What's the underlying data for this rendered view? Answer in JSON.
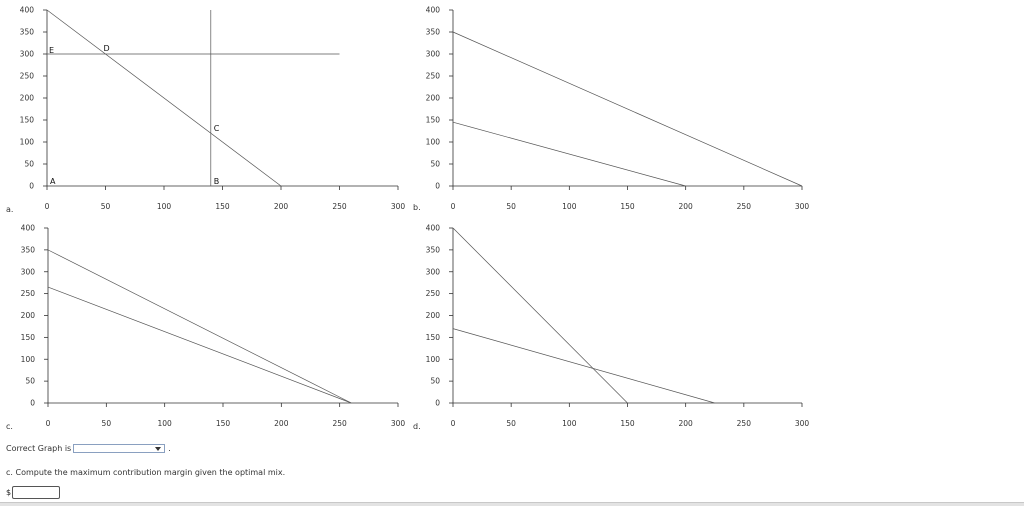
{
  "chart_data": [
    {
      "type": "line",
      "panel": "a.",
      "xlim": [
        0,
        300
      ],
      "ylim": [
        0,
        400
      ],
      "x_ticks": [
        0,
        50,
        100,
        150,
        200,
        250,
        300
      ],
      "y_ticks": [
        0,
        50,
        100,
        150,
        200,
        250,
        300,
        350,
        400
      ],
      "series": [
        {
          "points": [
            [
              0,
              400
            ],
            [
              200,
              0
            ]
          ]
        },
        {
          "points": [
            [
              0,
              300
            ],
            [
              250,
              300
            ]
          ]
        },
        {
          "points": [
            [
              140,
              0
            ],
            [
              140,
              400
            ]
          ]
        }
      ],
      "point_labels": [
        {
          "text": "A",
          "x": 0,
          "y": 0
        },
        {
          "text": "B",
          "x": 140,
          "y": 0
        },
        {
          "text": "C",
          "x": 140,
          "y": 120
        },
        {
          "text": "D",
          "x": 50,
          "y": 300
        },
        {
          "text": "E",
          "x": 0,
          "y": 300
        }
      ]
    },
    {
      "type": "line",
      "panel": "b.",
      "xlim": [
        0,
        300
      ],
      "ylim": [
        0,
        400
      ],
      "x_ticks": [
        0,
        50,
        100,
        150,
        200,
        250,
        300
      ],
      "y_ticks": [
        0,
        50,
        100,
        150,
        200,
        250,
        300,
        350,
        400
      ],
      "series": [
        {
          "points": [
            [
              0,
              350
            ],
            [
              300,
              0
            ]
          ]
        },
        {
          "points": [
            [
              0,
              145
            ],
            [
              200,
              0
            ]
          ]
        }
      ],
      "point_labels": []
    },
    {
      "type": "line",
      "panel": "c.",
      "xlim": [
        0,
        300
      ],
      "ylim": [
        0,
        400
      ],
      "x_ticks": [
        0,
        50,
        100,
        150,
        200,
        250,
        300
      ],
      "y_ticks": [
        0,
        50,
        100,
        150,
        200,
        250,
        300,
        350,
        400
      ],
      "series": [
        {
          "points": [
            [
              0,
              350
            ],
            [
              260,
              0
            ]
          ]
        },
        {
          "points": [
            [
              0,
              265
            ],
            [
              260,
              0
            ]
          ]
        }
      ],
      "point_labels": []
    },
    {
      "type": "line",
      "panel": "d.",
      "xlim": [
        0,
        300
      ],
      "ylim": [
        0,
        400
      ],
      "x_ticks": [
        0,
        50,
        100,
        150,
        200,
        250,
        300
      ],
      "y_ticks": [
        0,
        50,
        100,
        150,
        200,
        250,
        300,
        350,
        400
      ],
      "series": [
        {
          "points": [
            [
              0,
              400
            ],
            [
              150,
              0
            ]
          ]
        },
        {
          "points": [
            [
              0,
              170
            ],
            [
              225,
              0
            ]
          ]
        }
      ],
      "point_labels": []
    }
  ],
  "question": {
    "correct_graph_label": "Correct Graph is",
    "correct_graph_value": "",
    "correct_graph_period": ".",
    "prompt": "c. Compute the maximum contribution margin given the optimal mix.",
    "currency_symbol": "$",
    "answer_value": ""
  },
  "colors": {
    "line": "#555555",
    "axis": "#333333",
    "input_border": "#8aa0c0"
  }
}
